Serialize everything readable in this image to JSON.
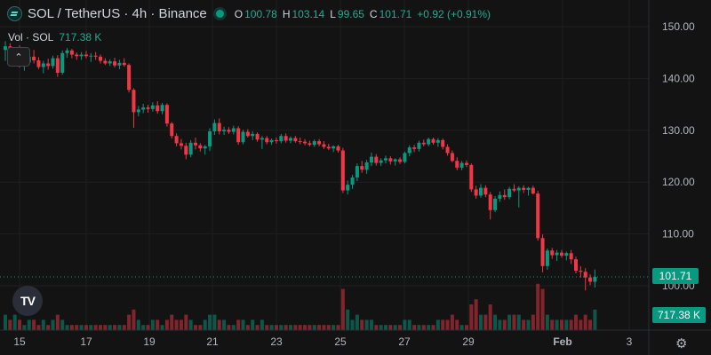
{
  "header": {
    "title": "SOL / TetherUS · 4h · Binance",
    "open_label": "O",
    "open": "100.78",
    "high_label": "H",
    "high": "103.14",
    "low_label": "L",
    "low": "99.65",
    "close_label": "C",
    "close": "101.71",
    "change": "+0.92 (+0.91%)",
    "icon": "solana-logo-icon",
    "status_icon": "market-open-dot"
  },
  "volume_legend": {
    "label": "Vol · SOL",
    "value": "717.38 K"
  },
  "price_label": "101.71",
  "volume_label": "717.38 K",
  "colors": {
    "up": "#089981",
    "down": "#f23645",
    "background": "#131313",
    "grid": "#1f1f1f"
  },
  "chart_data": {
    "type": "candlestick",
    "y_ticks": [
      "150.00",
      "140.00",
      "130.00",
      "120.00",
      "110.00",
      "100.00"
    ],
    "x_ticks": [
      "15",
      "17",
      "19",
      "21",
      "23",
      "25",
      "27",
      "29",
      "Feb",
      "3"
    ],
    "current_price": 101.71,
    "ohlc": [
      [
        145.5,
        147.2,
        143.4,
        146.2
      ],
      [
        146.2,
        146.8,
        143.8,
        144.5
      ],
      [
        144.5,
        145.8,
        143.5,
        145.3
      ],
      [
        145.3,
        146.4,
        142.1,
        142.8
      ],
      [
        142.8,
        143.9,
        141.5,
        143.1
      ],
      [
        143.1,
        144.8,
        142.6,
        144.2
      ],
      [
        144.2,
        145.5,
        142.9,
        143.5
      ],
      [
        143.5,
        144.1,
        141.8,
        142.2
      ],
      [
        142.2,
        143.4,
        141.0,
        142.9
      ],
      [
        142.9,
        143.8,
        141.7,
        142.4
      ],
      [
        142.4,
        144.4,
        141.9,
        143.9
      ],
      [
        143.9,
        144.5,
        140.3,
        141.1
      ],
      [
        141.1,
        145.4,
        140.7,
        144.9
      ],
      [
        144.9,
        145.9,
        144.0,
        145.4
      ],
      [
        145.4,
        145.7,
        143.9,
        144.6
      ],
      [
        144.6,
        145.0,
        143.6,
        144.3
      ],
      [
        144.3,
        145.1,
        143.6,
        144.6
      ],
      [
        144.6,
        145.3,
        143.9,
        144.3
      ],
      [
        144.3,
        144.9,
        143.2,
        144.4
      ],
      [
        144.4,
        145.1,
        143.6,
        144.2
      ],
      [
        144.2,
        144.6,
        142.9,
        143.4
      ],
      [
        143.4,
        143.9,
        142.6,
        142.9
      ],
      [
        142.9,
        143.7,
        142.4,
        143.3
      ],
      [
        143.3,
        144.0,
        142.1,
        142.5
      ],
      [
        142.5,
        143.6,
        141.8,
        143.0
      ],
      [
        143.0,
        143.9,
        142.3,
        142.6
      ],
      [
        142.6,
        142.9,
        137.3,
        137.8
      ],
      [
        137.8,
        138.1,
        130.5,
        133.5
      ],
      [
        133.5,
        134.7,
        132.7,
        134.0
      ],
      [
        134.0,
        135.1,
        133.3,
        134.4
      ],
      [
        134.4,
        134.9,
        133.4,
        134.1
      ],
      [
        134.1,
        135.4,
        133.6,
        134.8
      ],
      [
        134.8,
        135.6,
        133.2,
        133.7
      ],
      [
        133.7,
        135.3,
        133.1,
        134.9
      ],
      [
        134.9,
        135.2,
        130.7,
        131.3
      ],
      [
        131.3,
        131.6,
        128.4,
        128.9
      ],
      [
        128.9,
        129.4,
        126.9,
        127.5
      ],
      [
        127.5,
        128.3,
        126.3,
        127.0
      ],
      [
        127.0,
        127.6,
        124.4,
        125.3
      ],
      [
        125.3,
        128.1,
        124.8,
        127.6
      ],
      [
        127.6,
        128.6,
        126.3,
        127.1
      ],
      [
        127.1,
        127.5,
        125.9,
        126.5
      ],
      [
        126.5,
        127.2,
        125.3,
        126.9
      ],
      [
        126.9,
        130.4,
        126.0,
        129.8
      ],
      [
        129.8,
        132.1,
        129.1,
        131.4
      ],
      [
        131.4,
        132.3,
        129.2,
        129.8
      ],
      [
        129.8,
        130.7,
        129.1,
        130.1
      ],
      [
        130.1,
        130.6,
        129.3,
        129.7
      ],
      [
        129.7,
        130.9,
        129.2,
        130.4
      ],
      [
        130.4,
        130.8,
        127.2,
        127.7
      ],
      [
        127.7,
        130.1,
        127.3,
        129.7
      ],
      [
        129.7,
        130.2,
        128.6,
        128.9
      ],
      [
        128.9,
        129.8,
        128.1,
        129.3
      ],
      [
        129.3,
        129.6,
        127.8,
        128.2
      ],
      [
        128.2,
        128.9,
        126.4,
        128.5
      ],
      [
        128.5,
        128.9,
        127.3,
        127.7
      ],
      [
        127.7,
        128.4,
        127.2,
        128.1
      ],
      [
        128.1,
        128.6,
        127.4,
        127.9
      ],
      [
        127.9,
        129.3,
        127.5,
        128.9
      ],
      [
        128.9,
        129.4,
        127.6,
        128.0
      ],
      [
        128.0,
        128.8,
        127.5,
        128.5
      ],
      [
        128.5,
        128.9,
        127.6,
        127.9
      ],
      [
        127.9,
        128.6,
        127.3,
        127.8
      ],
      [
        127.8,
        128.3,
        127.1,
        127.5
      ],
      [
        127.5,
        128.0,
        126.9,
        127.2
      ],
      [
        127.2,
        128.2,
        126.8,
        127.9
      ],
      [
        127.9,
        128.3,
        126.9,
        127.3
      ],
      [
        127.3,
        127.9,
        126.4,
        126.8
      ],
      [
        126.8,
        127.4,
        126.2,
        126.5
      ],
      [
        126.5,
        127.1,
        125.8,
        126.9
      ],
      [
        126.9,
        127.2,
        125.7,
        126.1
      ],
      [
        126.1,
        126.6,
        117.9,
        118.4
      ],
      [
        118.4,
        120.3,
        117.6,
        119.5
      ],
      [
        119.5,
        121.4,
        118.7,
        120.9
      ],
      [
        120.9,
        123.6,
        120.2,
        123.1
      ],
      [
        123.1,
        124.1,
        121.8,
        122.4
      ],
      [
        122.4,
        124.3,
        121.6,
        123.8
      ],
      [
        123.8,
        125.7,
        123.1,
        124.9
      ],
      [
        124.9,
        125.4,
        123.2,
        123.7
      ],
      [
        123.7,
        124.6,
        123.1,
        124.2
      ],
      [
        124.2,
        125.1,
        123.6,
        124.6
      ],
      [
        124.6,
        125.0,
        123.4,
        124.0
      ],
      [
        124.0,
        124.6,
        123.2,
        124.4
      ],
      [
        124.4,
        124.8,
        123.5,
        123.9
      ],
      [
        123.9,
        125.9,
        123.6,
        125.6
      ],
      [
        125.6,
        127.1,
        125.0,
        126.7
      ],
      [
        126.7,
        127.2,
        125.8,
        126.4
      ],
      [
        126.4,
        128.0,
        125.9,
        127.6
      ],
      [
        127.6,
        128.2,
        126.9,
        127.3
      ],
      [
        127.3,
        128.6,
        126.9,
        128.3
      ],
      [
        128.3,
        128.6,
        127.2,
        127.6
      ],
      [
        127.6,
        128.5,
        126.8,
        128.1
      ],
      [
        128.1,
        128.4,
        126.3,
        126.8
      ],
      [
        126.8,
        127.3,
        125.1,
        125.6
      ],
      [
        125.6,
        126.1,
        123.8,
        124.1
      ],
      [
        124.1,
        124.8,
        122.3,
        122.8
      ],
      [
        122.8,
        124.1,
        122.3,
        123.7
      ],
      [
        123.7,
        124.2,
        122.9,
        123.3
      ],
      [
        123.3,
        123.6,
        118.1,
        118.6
      ],
      [
        118.6,
        119.3,
        116.8,
        117.4
      ],
      [
        117.4,
        119.6,
        117.0,
        118.9
      ],
      [
        118.9,
        119.4,
        117.1,
        117.6
      ],
      [
        117.6,
        118.1,
        112.8,
        114.6
      ],
      [
        114.6,
        117.3,
        114.2,
        116.8
      ],
      [
        116.8,
        118.2,
        116.2,
        117.5
      ],
      [
        117.5,
        118.6,
        116.6,
        117.1
      ],
      [
        117.1,
        119.1,
        116.7,
        118.7
      ],
      [
        118.7,
        119.6,
        118.1,
        118.4
      ],
      [
        118.4,
        119.2,
        115.1,
        118.9
      ],
      [
        118.9,
        119.4,
        117.9,
        118.5
      ],
      [
        118.5,
        119.1,
        117.4,
        118.9
      ],
      [
        118.9,
        119.3,
        117.6,
        117.8
      ],
      [
        117.8,
        118.3,
        108.7,
        109.2
      ],
      [
        109.2,
        109.9,
        102.6,
        103.8
      ],
      [
        103.8,
        107.2,
        103.1,
        106.8
      ],
      [
        106.8,
        107.3,
        105.2,
        105.9
      ],
      [
        105.9,
        106.9,
        104.8,
        106.4
      ],
      [
        106.4,
        106.9,
        105.4,
        105.8
      ],
      [
        105.8,
        106.6,
        104.9,
        106.3
      ],
      [
        106.3,
        106.9,
        104.2,
        105.1
      ],
      [
        105.1,
        105.6,
        102.4,
        102.9
      ],
      [
        102.9,
        103.8,
        101.6,
        102.7
      ],
      [
        102.7,
        103.4,
        99.1,
        101.6
      ],
      [
        101.6,
        102.2,
        100.1,
        100.8
      ],
      [
        100.78,
        103.14,
        99.65,
        101.71
      ]
    ],
    "volume": [
      3,
      2,
      3,
      2,
      1,
      2,
      2,
      1,
      2,
      1,
      2,
      3,
      2,
      1,
      1,
      1,
      1,
      1,
      1,
      1,
      1,
      1,
      1,
      1,
      1,
      1,
      3,
      4,
      2,
      1,
      1,
      2,
      2,
      1,
      2,
      3,
      2,
      2,
      3,
      2,
      1,
      1,
      2,
      3,
      3,
      2,
      2,
      1,
      1,
      2,
      2,
      1,
      2,
      1,
      2,
      1,
      1,
      1,
      1,
      1,
      1,
      1,
      1,
      1,
      1,
      1,
      1,
      1,
      1,
      1,
      1,
      8,
      4,
      2,
      3,
      2,
      2,
      2,
      1,
      1,
      1,
      1,
      1,
      1,
      2,
      2,
      1,
      1,
      1,
      1,
      1,
      2,
      2,
      2,
      3,
      2,
      1,
      1,
      5,
      6,
      3,
      3,
      5,
      3,
      2,
      2,
      3,
      3,
      3,
      2,
      2,
      3,
      9,
      8,
      3,
      2,
      2,
      2,
      2,
      2,
      3,
      2,
      3,
      2,
      4
    ]
  }
}
